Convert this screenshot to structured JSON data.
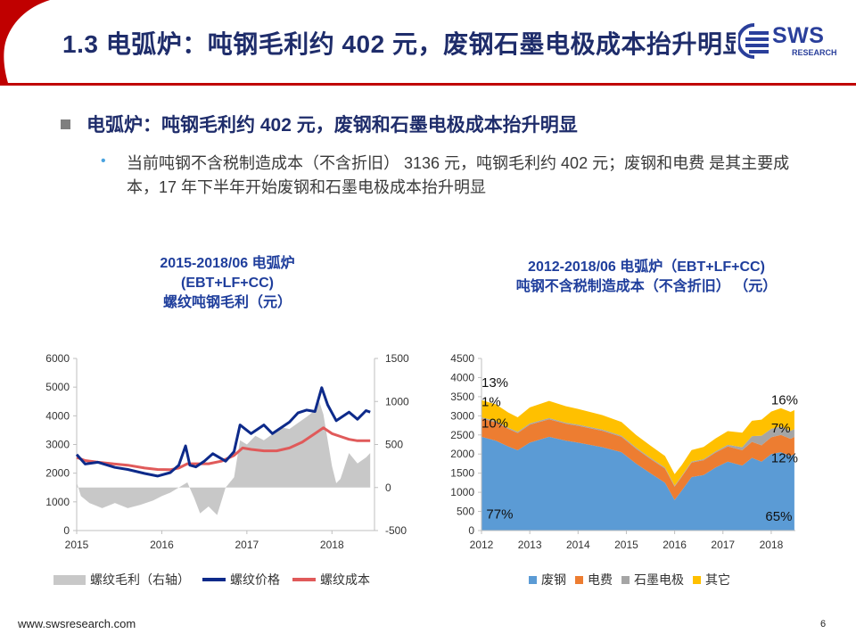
{
  "header": {
    "title": "1.3 电弧炉：吨钢毛利约 402 元，废钢石墨电极成本抬升明显",
    "logo_text": "SWS",
    "logo_sub": "RESEARCH"
  },
  "bullet_main": "电弧炉：吨钢毛利约 402 元，废钢和石墨电极成本抬升明显",
  "sub_bullet": "当前吨钢不含税制造成本（不含折旧） 3136 元，吨钢毛利约 402 元；废钢和电费 是其主要成本，17 年下半年开始废钢和石墨电极成本抬升明显",
  "chart_left": {
    "title_line1": "2015-2018/06 电弧炉",
    "title_line2": "(EBT+LF+CC)",
    "title_line3": "螺纹吨钢毛利（元）",
    "legend": [
      "螺纹毛利（右轴）",
      "螺纹价格",
      "螺纹成本"
    ]
  },
  "chart_right": {
    "title_line1": "2012-2018/06 电弧炉（EBT+LF+CC)",
    "title_line2": "吨钢不含税制造成本（不含折旧） （元）",
    "legend": [
      "废钢",
      "电费",
      "石墨电极",
      "其它"
    ]
  },
  "colors": {
    "navy": "#1f2d6b",
    "red": "#c00000",
    "price_line": "#0d2a8a",
    "cost_line": "#e05a5a",
    "margin_area": "#c8c8c8",
    "scrap": "#5b9bd5",
    "power": "#ed7d31",
    "graphite": "#a5a5a5",
    "other": "#ffc000"
  },
  "chart_data": [
    {
      "type": "line",
      "title": "2015-2018/06 电弧炉 (EBT+LF+CC) 螺纹吨钢毛利（元）",
      "x_labels": [
        "2015",
        "2016",
        "2017",
        "2018"
      ],
      "xlim": [
        2015,
        2018.5
      ],
      "ylim_left": [
        0,
        6000
      ],
      "yticks_left": [
        "0",
        "1000",
        "2000",
        "3000",
        "4000",
        "5000",
        "6000"
      ],
      "ylim_right": [
        -500,
        1500
      ],
      "yticks_right": [
        "-500",
        "0",
        "500",
        "1000",
        "1500"
      ],
      "series": [
        {
          "name": "螺纹价格",
          "axis": "left",
          "type": "line",
          "x": [
            2015.0,
            2015.1,
            2015.25,
            2015.45,
            2015.6,
            2015.8,
            2015.95,
            2016.1,
            2016.2,
            2016.28,
            2016.33,
            2016.4,
            2016.5,
            2016.6,
            2016.75,
            2016.85,
            2016.92,
            2017.05,
            2017.2,
            2017.3,
            2017.5,
            2017.6,
            2017.7,
            2017.8,
            2017.88,
            2017.95,
            2018.05,
            2018.2,
            2018.3,
            2018.4,
            2018.45
          ],
          "y": [
            2650,
            2320,
            2380,
            2200,
            2130,
            1990,
            1900,
            2020,
            2280,
            2950,
            2280,
            2220,
            2420,
            2680,
            2420,
            2750,
            3680,
            3380,
            3680,
            3380,
            3780,
            4100,
            4200,
            4150,
            4980,
            4380,
            3830,
            4130,
            3880,
            4180,
            4130
          ]
        },
        {
          "name": "螺纹成本",
          "axis": "left",
          "type": "line",
          "x": [
            2015.0,
            2015.1,
            2015.25,
            2015.45,
            2015.6,
            2015.8,
            2015.95,
            2016.1,
            2016.2,
            2016.3,
            2016.4,
            2016.55,
            2016.7,
            2016.85,
            2016.95,
            2017.05,
            2017.2,
            2017.35,
            2017.5,
            2017.65,
            2017.8,
            2017.9,
            2018.0,
            2018.1,
            2018.2,
            2018.3,
            2018.45
          ],
          "y": [
            2550,
            2440,
            2380,
            2320,
            2280,
            2180,
            2130,
            2120,
            2180,
            2330,
            2330,
            2330,
            2420,
            2620,
            2880,
            2830,
            2780,
            2780,
            2880,
            3080,
            3380,
            3580,
            3380,
            3280,
            3180,
            3130,
            3130
          ]
        },
        {
          "name": "螺纹毛利（右轴）",
          "axis": "right",
          "type": "area",
          "x": [
            2015.0,
            2015.05,
            2015.15,
            2015.3,
            2015.45,
            2015.6,
            2015.75,
            2015.9,
            2016.0,
            2016.1,
            2016.2,
            2016.3,
            2016.38,
            2016.45,
            2016.55,
            2016.65,
            2016.75,
            2016.85,
            2016.92,
            2017.0,
            2017.1,
            2017.2,
            2017.3,
            2017.4,
            2017.5,
            2017.6,
            2017.7,
            2017.78,
            2017.85,
            2017.9,
            2017.95,
            2018.0,
            2018.05,
            2018.1,
            2018.2,
            2018.3,
            2018.4,
            2018.45
          ],
          "y": [
            60,
            -100,
            -180,
            -240,
            -180,
            -240,
            -200,
            -150,
            -100,
            -60,
            0,
            60,
            -120,
            -300,
            -220,
            -320,
            0,
            120,
            550,
            500,
            600,
            550,
            620,
            700,
            680,
            750,
            820,
            880,
            1000,
            850,
            550,
            250,
            50,
            100,
            400,
            280,
            350,
            400
          ]
        }
      ],
      "legend": [
        "螺纹毛利（右轴）",
        "螺纹价格",
        "螺纹成本"
      ]
    },
    {
      "type": "area",
      "stacked": true,
      "title": "2012-2018/06 电弧炉（EBT+LF+CC) 吨钢不含税制造成本（不含折旧） （元）",
      "x_labels": [
        "2012",
        "2013",
        "2014",
        "2015",
        "2016",
        "2017",
        "2018"
      ],
      "x": [
        2012.0,
        2012.3,
        2012.55,
        2012.75,
        2013.0,
        2013.4,
        2013.75,
        2014.0,
        2014.5,
        2014.9,
        2015.2,
        2015.5,
        2015.8,
        2016.0,
        2016.15,
        2016.35,
        2016.6,
        2016.85,
        2017.1,
        2017.4,
        2017.6,
        2017.8,
        2018.0,
        2018.2,
        2018.4,
        2018.48
      ],
      "ylim": [
        0,
        4500
      ],
      "yticks": [
        "0",
        "500",
        "1000",
        "1500",
        "2000",
        "2500",
        "3000",
        "3500",
        "4000",
        "4500"
      ],
      "series": [
        {
          "name": "废钢",
          "values": [
            2450,
            2350,
            2200,
            2100,
            2300,
            2450,
            2350,
            2300,
            2180,
            2050,
            1750,
            1500,
            1250,
            800,
            1050,
            1400,
            1450,
            1650,
            1800,
            1700,
            1900,
            1800,
            2000,
            2050,
            1950,
            2000
          ]
        },
        {
          "name": "电费",
          "values": [
            480,
            480,
            460,
            450,
            470,
            460,
            440,
            440,
            430,
            400,
            390,
            370,
            370,
            350,
            360,
            380,
            390,
            390,
            400,
            400,
            420,
            430,
            440,
            450,
            450,
            450
          ]
        },
        {
          "name": "石墨电极",
          "values": [
            30,
            30,
            30,
            30,
            30,
            30,
            30,
            30,
            30,
            30,
            30,
            30,
            30,
            25,
            25,
            25,
            25,
            30,
            40,
            80,
            150,
            250,
            220,
            220,
            210,
            200
          ]
        },
        {
          "name": "其它",
          "values": [
            450,
            440,
            400,
            380,
            420,
            450,
            430,
            410,
            380,
            360,
            330,
            320,
            300,
            300,
            280,
            300,
            320,
            340,
            360,
            380,
            400,
            420,
            450,
            480,
            490,
            500
          ]
        }
      ],
      "annotations": [
        "13%",
        "1%",
        "10%",
        "77%",
        "16%",
        "7%",
        "12%",
        "65%"
      ],
      "legend": [
        "废钢",
        "电费",
        "石墨电极",
        "其它"
      ]
    }
  ]
}
